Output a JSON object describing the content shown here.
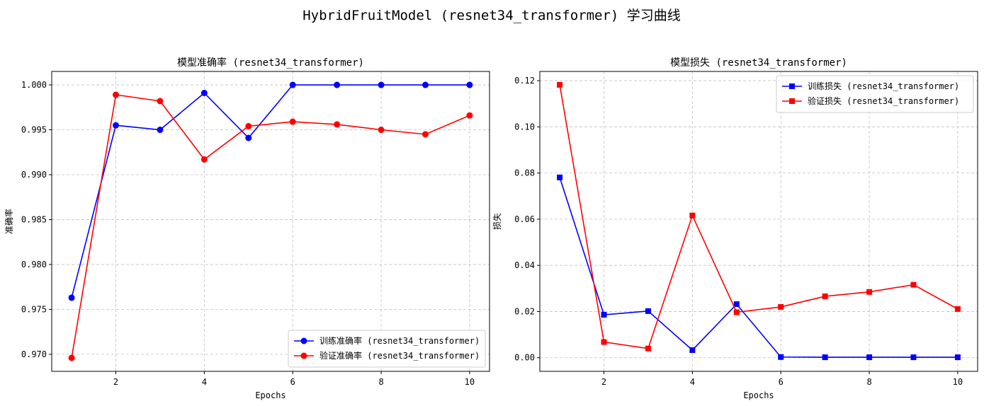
{
  "figure": {
    "suptitle": "HybridFruitModel (resnet34_transformer) 学习曲线"
  },
  "chart_data": [
    {
      "type": "line",
      "title": "模型准确率 (resnet34_transformer)",
      "xlabel": "Epochs",
      "ylabel": "准确率",
      "x": [
        1,
        2,
        3,
        4,
        5,
        6,
        7,
        8,
        9,
        10
      ],
      "xticks": [
        2,
        4,
        6,
        8,
        10
      ],
      "xlim": [
        0.55,
        10.45
      ],
      "yticks": [
        0.97,
        0.975,
        0.98,
        0.985,
        0.99,
        0.995,
        1.0
      ],
      "ytick_labels": [
        "0.970",
        "0.975",
        "0.980",
        "0.985",
        "0.990",
        "0.995",
        "1.000"
      ],
      "ylim": [
        0.9681,
        1.0015
      ],
      "grid": true,
      "legend_position": "lower-right",
      "marker": "circle",
      "series": [
        {
          "name": "训练准确率 (resnet34_transformer)",
          "color": "#0000ff",
          "values": [
            0.9763,
            0.9955,
            0.995,
            0.9991,
            0.9941,
            1.0,
            1.0,
            1.0,
            1.0,
            1.0
          ]
        },
        {
          "name": "验证准确率 (resnet34_transformer)",
          "color": "#ff0000",
          "values": [
            0.9696,
            0.9989,
            0.9982,
            0.9917,
            0.9954,
            0.9959,
            0.9956,
            0.995,
            0.9945,
            0.9966
          ]
        }
      ]
    },
    {
      "type": "line",
      "title": "模型损失 (resnet34_transformer)",
      "xlabel": "Epochs",
      "ylabel": "损失",
      "x": [
        1,
        2,
        3,
        4,
        5,
        6,
        7,
        8,
        9,
        10
      ],
      "xticks": [
        2,
        4,
        6,
        8,
        10
      ],
      "xlim": [
        0.55,
        10.45
      ],
      "yticks": [
        0.0,
        0.02,
        0.04,
        0.06,
        0.08,
        0.1,
        0.12
      ],
      "ytick_labels": [
        "0.00",
        "0.02",
        "0.04",
        "0.06",
        "0.08",
        "0.10",
        "0.12"
      ],
      "ylim": [
        -0.0059,
        0.124
      ],
      "grid": true,
      "legend_position": "upper-right",
      "marker": "square",
      "series": [
        {
          "name": "训练损失 (resnet34_transformer)",
          "color": "#0000ff",
          "values": [
            0.0781,
            0.0186,
            0.0202,
            0.0033,
            0.0232,
            0.0003,
            0.0002,
            0.0002,
            0.0002,
            0.0002
          ]
        },
        {
          "name": "验证损失 (resnet34_transformer)",
          "color": "#ff0000",
          "values": [
            0.1182,
            0.0068,
            0.004,
            0.0616,
            0.0197,
            0.022,
            0.0266,
            0.0285,
            0.0316,
            0.0211
          ]
        }
      ]
    }
  ]
}
